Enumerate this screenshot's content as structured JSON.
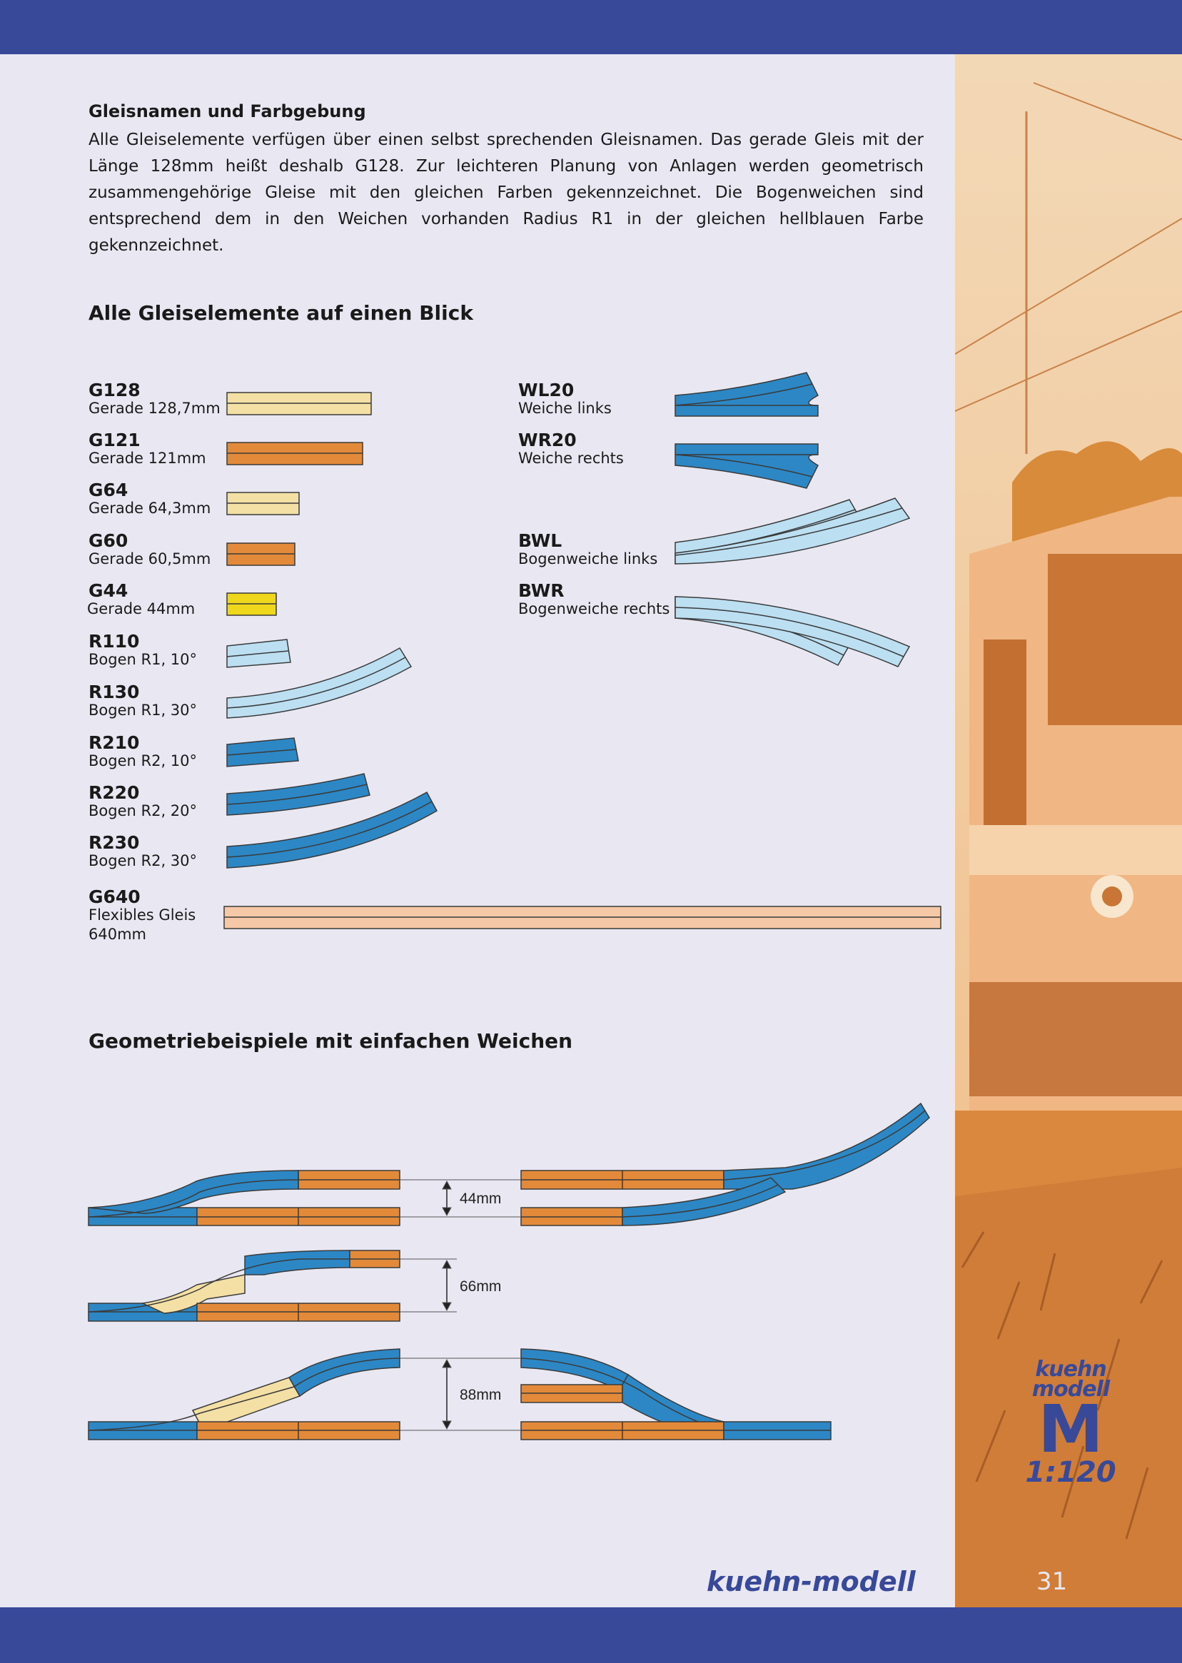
{
  "heading_colors": "Gleisnamen und Farbgebung",
  "intro_text": "Alle Gleiselemente verfügen über einen selbst sprechenden Gleisnamen. Das gerade Gleis mit der Länge 128mm heißt deshalb G128. Zur leichteren Planung von Anlagen werden geometrisch zusammengehörige Gleise mit den gleichen Farben gekennzeichnet. Die Bogenweichen sind entsprechend dem in den Weichen vorhanden Radius R1 in der gleichen hellblauen Farbe gekennzeichnet.",
  "heading_overview": "Alle Gleiselemente auf einen Blick",
  "track_elements": [
    {
      "code": "G128",
      "desc": "Gerade 128,7mm",
      "color": "#f4dfa4"
    },
    {
      "code": "G121",
      "desc": "Gerade 121mm",
      "color": "#e3893a"
    },
    {
      "code": "G64",
      "desc": "Gerade 64,3mm",
      "color": "#f4dfa4"
    },
    {
      "code": "G60",
      "desc": "Gerade 60,5mm",
      "color": "#e3893a"
    },
    {
      "code": "G44",
      "desc": "Gerade 44mm",
      "color": "#efd81c"
    },
    {
      "code": "R110",
      "desc": "Bogen R1, 10°",
      "color": "#bcdff2"
    },
    {
      "code": "R130",
      "desc": "Bogen R1, 30°",
      "color": "#bcdff2"
    },
    {
      "code": "R210",
      "desc": "Bogen R2, 10°",
      "color": "#2c87c4"
    },
    {
      "code": "R220",
      "desc": "Bogen R2, 20°",
      "color": "#2c87c4"
    },
    {
      "code": "R230",
      "desc": "Bogen R2, 30°",
      "color": "#2c87c4"
    }
  ],
  "flex_track": {
    "code": "G640",
    "desc_line1": "Flexibles Gleis",
    "desc_line2": "640mm",
    "color": "#f5c9a8"
  },
  "switch_elements": [
    {
      "code": "WL20",
      "desc": "Weiche links",
      "color": "#2c87c4"
    },
    {
      "code": "WR20",
      "desc": "Weiche rechts",
      "color": "#2c87c4"
    },
    {
      "code": "BWL",
      "desc": "Bogenweiche links",
      "color": "#bcdff2"
    },
    {
      "code": "BWR",
      "desc": "Bogenweiche rechts",
      "color": "#bcdff2"
    }
  ],
  "heading_geometry": "Geometriebeispiele mit einfachen Weichen",
  "geometry_spacings": [
    "44mm",
    "66mm",
    "88mm"
  ],
  "brand": "kuehn-modell",
  "logo": {
    "line1": "kuehn",
    "line2": "modell",
    "letter": "M",
    "scale": "1:120"
  },
  "page_number": "31",
  "colors": {
    "band": "#39499a",
    "side": "#efa052",
    "paper": "#e9e8f2"
  }
}
